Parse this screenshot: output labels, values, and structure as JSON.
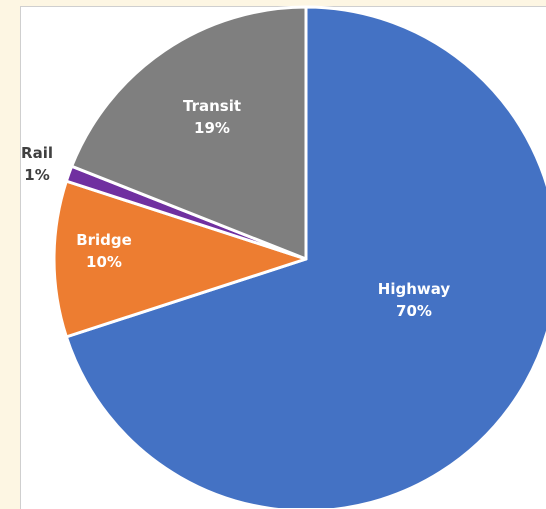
{
  "chart_data": {
    "type": "pie",
    "title": "",
    "slices": [
      {
        "label": "Highway",
        "value": 70,
        "pct_label": "70%",
        "color": "#4472c4",
        "label_color": "#ffffff"
      },
      {
        "label": "Bridge",
        "value": 10,
        "pct_label": "10%",
        "color": "#ed7d31",
        "label_color": "#ffffff"
      },
      {
        "label": "Rail",
        "value": 1,
        "pct_label": "1%",
        "color": "#7030a0",
        "label_color": "#404040"
      },
      {
        "label": "Transit",
        "value": 19,
        "pct_label": "19%",
        "color": "#7f7f7f",
        "label_color": "#ffffff"
      }
    ],
    "start_angle_deg": 0,
    "direction": "clockwise",
    "slice_border_color": "#ffffff",
    "background": "#fdf6e3"
  }
}
